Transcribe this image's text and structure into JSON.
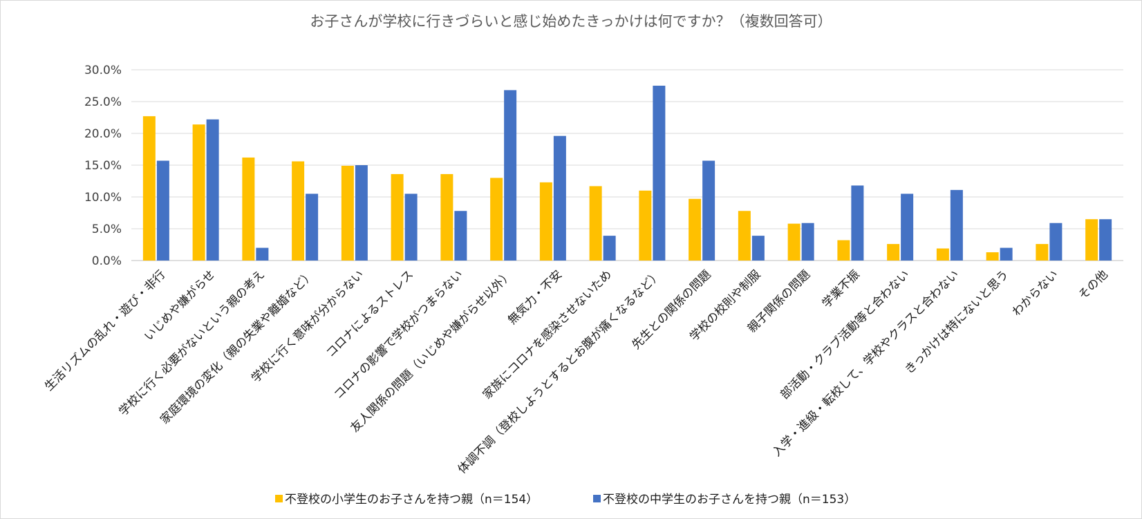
{
  "chart_data": {
    "type": "bar",
    "title": "お子さんが学校に行きづらいと感じ始めたきっかけは何ですか？（複数回答可）",
    "xlabel": "",
    "ylabel": "",
    "ylim": [
      0,
      30
    ],
    "y_ticks": [
      "0.0%",
      "5.0%",
      "10.0%",
      "15.0%",
      "20.0%",
      "25.0%",
      "30.0%"
    ],
    "grid": true,
    "legend_position": "bottom",
    "categories": [
      "生活リズムの乱れ・遊び・非行",
      "いじめや嫌がらせ",
      "学校に行く必要がないという親の考え",
      "家庭環境の変化（親の失業や離婚など）",
      "学校に行く意味が分からない",
      "コロナによるストレス",
      "コロナの影響で学校がつまらない",
      "友人関係の問題（いじめや嫌がらせ以外）",
      "無気力・不安",
      "家族にコロナを感染させないため",
      "体調不調（登校しようとするとお腹が痛くなるなど）",
      "先生との関係の問題",
      "学校の校則や制服",
      "親子関係の問題",
      "学業不振",
      "部活動・クラブ活動等と合わない",
      "入学・進級・転校して、学校やクラスと合わない",
      "きっかけは特にないと思う",
      "わからない",
      "その他"
    ],
    "series": [
      {
        "name": "不登校の小学生のお子さんを持つ親（n＝154）",
        "color": "#FFC000",
        "values": [
          22.7,
          21.4,
          16.2,
          15.6,
          14.9,
          13.6,
          13.6,
          13.0,
          12.3,
          11.7,
          11.0,
          9.7,
          7.8,
          5.8,
          3.2,
          2.6,
          1.9,
          1.3,
          2.6,
          6.5
        ]
      },
      {
        "name": "不登校の中学生のお子さんを持つ親（n＝153）",
        "color": "#4472C4",
        "values": [
          15.7,
          22.2,
          2.0,
          10.5,
          15.0,
          10.5,
          7.8,
          26.8,
          19.6,
          3.9,
          27.5,
          15.7,
          3.9,
          5.9,
          11.8,
          10.5,
          11.1,
          2.0,
          5.9,
          6.5
        ]
      }
    ]
  }
}
